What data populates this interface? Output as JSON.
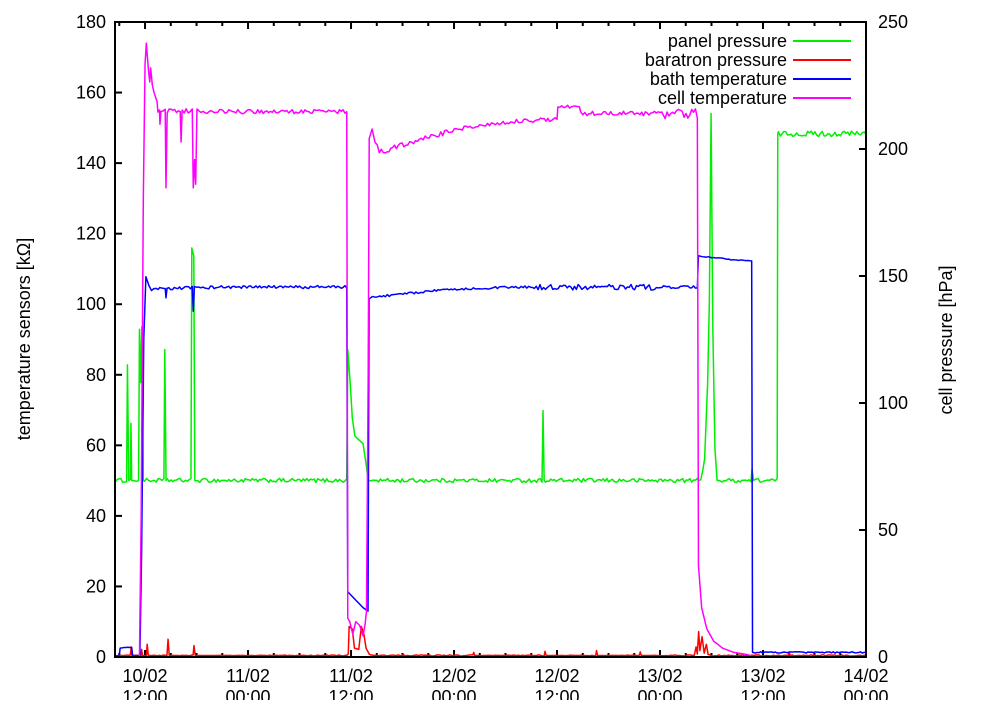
{
  "chart_data": {
    "type": "line",
    "title": "",
    "background": "#ffffff",
    "frame_color": "#000000",
    "grid": false,
    "legend": {
      "position": "top-right-inside"
    },
    "x_axis": {
      "unit": "hours since 10/02 00:00",
      "range": [
        8.5,
        96
      ],
      "minor_tick_step_hours": 3,
      "major_ticks": [
        {
          "t": 12,
          "date": "10/02",
          "time": "12:00"
        },
        {
          "t": 24,
          "date": "11/02",
          "time": "00:00"
        },
        {
          "t": 36,
          "date": "11/02",
          "time": "12:00"
        },
        {
          "t": 48,
          "date": "12/02",
          "time": "00:00"
        },
        {
          "t": 60,
          "date": "12/02",
          "time": "12:00"
        },
        {
          "t": 72,
          "date": "13/02",
          "time": "00:00"
        },
        {
          "t": 84,
          "date": "13/02",
          "time": "12:00"
        },
        {
          "t": 96,
          "date": "14/02",
          "time": "00:00"
        }
      ]
    },
    "y_left": {
      "label": "temperature sensors [kΩ]",
      "range": [
        0,
        180
      ],
      "ticks": [
        0,
        20,
        40,
        60,
        80,
        100,
        120,
        140,
        160,
        180
      ]
    },
    "y_right": {
      "label": "cell pressure [hPa]",
      "range": [
        0,
        250
      ],
      "ticks": [
        0,
        50,
        100,
        150,
        200,
        250
      ]
    },
    "series": [
      {
        "name": "panel pressure",
        "color": "#00ee00",
        "axis": "right",
        "unit": "hPa",
        "points": [
          [
            8.5,
            69.5,
            0.8
          ],
          [
            9.85,
            69.5,
            0.8
          ],
          [
            9.95,
            115,
            0
          ],
          [
            10.1,
            69.5,
            0
          ],
          [
            10.3,
            69.5,
            0.8
          ],
          [
            10.36,
            92,
            0
          ],
          [
            10.45,
            69.5,
            0
          ],
          [
            11.25,
            69.5,
            0.8
          ],
          [
            11.35,
            129,
            0
          ],
          [
            11.5,
            108,
            0
          ],
          [
            11.62,
            130,
            0
          ],
          [
            11.8,
            69.5,
            0
          ],
          [
            11.95,
            69.5,
            0.8
          ],
          [
            14.2,
            69.5,
            0.8
          ],
          [
            14.3,
            121,
            0
          ],
          [
            14.45,
            69.5,
            0
          ],
          [
            14.6,
            69.5,
            0.8
          ],
          [
            17.35,
            69.5,
            0.8
          ],
          [
            17.45,
            161,
            0
          ],
          [
            17.68,
            158,
            0
          ],
          [
            17.8,
            69.5,
            0
          ],
          [
            17.95,
            69.5,
            0.8
          ],
          [
            35.5,
            69.5,
            0.8
          ],
          [
            35.62,
            121,
            0
          ],
          [
            35.9,
            108,
            0
          ],
          [
            36.15,
            94,
            0
          ],
          [
            36.45,
            87,
            0
          ],
          [
            36.75,
            86,
            0
          ],
          [
            37.4,
            84,
            0
          ],
          [
            37.8,
            75,
            0
          ],
          [
            38.0,
            69.5,
            0
          ],
          [
            38.15,
            69.5,
            0.8
          ],
          [
            58.25,
            69.5,
            0.8
          ],
          [
            58.37,
            97,
            0
          ],
          [
            58.5,
            69.5,
            0
          ],
          [
            58.65,
            69.5,
            0.8
          ],
          [
            76.75,
            69.5,
            0.8
          ],
          [
            77.2,
            78,
            0
          ],
          [
            77.55,
            108,
            0
          ],
          [
            77.75,
            140,
            0
          ],
          [
            77.95,
            214,
            0
          ],
          [
            78.15,
            130,
            0
          ],
          [
            78.4,
            82,
            0
          ],
          [
            78.65,
            69.5,
            0
          ],
          [
            78.8,
            69.5,
            0.8
          ],
          [
            82.6,
            69.5,
            0.8
          ],
          [
            82.72,
            74,
            0
          ],
          [
            82.9,
            69.5,
            0
          ],
          [
            83.0,
            69.5,
            0.8
          ],
          [
            85.65,
            69.5,
            0.8
          ],
          [
            85.72,
            206,
            0
          ],
          [
            85.8,
            206,
            1.1
          ],
          [
            96,
            206,
            1.1
          ]
        ]
      },
      {
        "name": "baratron pressure",
        "color": "#ff0000",
        "axis": "right",
        "unit": "hPa",
        "points": [
          [
            8.5,
            0.6,
            0.25
          ],
          [
            10.3,
            0.6,
            0.25
          ],
          [
            10.38,
            4,
            0
          ],
          [
            10.48,
            0.6,
            0
          ],
          [
            11.5,
            0.6,
            0.25
          ],
          [
            11.6,
            3,
            0
          ],
          [
            11.7,
            0.6,
            0
          ],
          [
            12.15,
            0.6,
            0.25
          ],
          [
            12.25,
            5,
            0
          ],
          [
            12.38,
            0.6,
            0
          ],
          [
            14.55,
            0.6,
            0.25
          ],
          [
            14.68,
            7,
            0
          ],
          [
            14.82,
            0.6,
            0
          ],
          [
            17.6,
            0.6,
            0.25
          ],
          [
            17.7,
            4.5,
            0
          ],
          [
            17.85,
            0.6,
            0
          ],
          [
            35.55,
            0.6,
            0.25
          ],
          [
            35.68,
            1.2,
            0
          ],
          [
            35.78,
            12,
            0
          ],
          [
            36.15,
            11,
            0
          ],
          [
            36.4,
            3.5,
            0
          ],
          [
            36.9,
            3,
            0
          ],
          [
            37.2,
            12,
            0
          ],
          [
            37.5,
            9,
            0
          ],
          [
            37.75,
            3.5,
            0
          ],
          [
            38.15,
            1,
            0
          ],
          [
            38.35,
            0.6,
            0.25
          ],
          [
            50.2,
            0.6,
            0.25
          ],
          [
            50.3,
            1.8,
            0
          ],
          [
            50.4,
            0.6,
            0
          ],
          [
            58.5,
            0.6,
            0.25
          ],
          [
            58.6,
            2.2,
            0
          ],
          [
            58.72,
            0.6,
            0
          ],
          [
            64.5,
            0.6,
            0.25
          ],
          [
            64.6,
            2.5,
            0
          ],
          [
            64.72,
            0.6,
            0
          ],
          [
            69.6,
            0.6,
            0.25
          ],
          [
            69.7,
            2,
            0
          ],
          [
            69.82,
            0.6,
            0
          ],
          [
            76.0,
            0.6,
            0.25
          ],
          [
            76.2,
            4,
            0
          ],
          [
            76.35,
            1.2,
            0
          ],
          [
            76.5,
            10,
            0
          ],
          [
            76.65,
            2.5,
            0
          ],
          [
            76.9,
            8,
            0
          ],
          [
            77.15,
            1.5,
            0
          ],
          [
            77.4,
            5,
            0
          ],
          [
            77.6,
            1,
            0
          ],
          [
            77.8,
            0.6,
            0.25
          ],
          [
            86.95,
            0.6,
            0.25
          ],
          [
            87.05,
            1.8,
            0
          ],
          [
            87.2,
            0.6,
            0.25
          ],
          [
            96,
            0.6,
            0.25
          ]
        ]
      },
      {
        "name": "bath temperature",
        "color": "#0000ff",
        "axis": "left",
        "unit": "kΩ",
        "points": [
          [
            8.5,
            0.4,
            0.12
          ],
          [
            9.0,
            0.4,
            0.12
          ],
          [
            9.1,
            2.6,
            0.15
          ],
          [
            10.45,
            2.6,
            0.15
          ],
          [
            10.55,
            0.4,
            0.12
          ],
          [
            11.4,
            0.4,
            0
          ],
          [
            11.6,
            30,
            0
          ],
          [
            11.85,
            90,
            0
          ],
          [
            12.1,
            107.8,
            0
          ],
          [
            12.45,
            105.3,
            0
          ],
          [
            12.75,
            103.9,
            0.3
          ],
          [
            13.3,
            104.3,
            0.4
          ],
          [
            14.35,
            104.4,
            0.4
          ],
          [
            14.44,
            101.8,
            0
          ],
          [
            14.56,
            104.4,
            0.4
          ],
          [
            17.5,
            104.7,
            0.4
          ],
          [
            17.62,
            98,
            0
          ],
          [
            17.75,
            104.7,
            0.4
          ],
          [
            19,
            104.8,
            0.45
          ],
          [
            35.5,
            104.9,
            0.45
          ],
          [
            35.62,
            18.5,
            0
          ],
          [
            36.4,
            16.5,
            0
          ],
          [
            37.4,
            14,
            0
          ],
          [
            37.98,
            13,
            0
          ],
          [
            38.1,
            101.5,
            0
          ],
          [
            38.5,
            102,
            0.3
          ],
          [
            40,
            102.4,
            0.3
          ],
          [
            42.5,
            103,
            0.3
          ],
          [
            45.5,
            103.8,
            0.3
          ],
          [
            48.5,
            104.3,
            0.3
          ],
          [
            52,
            104.6,
            0.35
          ],
          [
            55.6,
            104.8,
            0.35
          ],
          [
            57.8,
            104.8,
            0.8
          ],
          [
            71.8,
            104.8,
            0.8
          ],
          [
            72.2,
            104.8,
            0.45
          ],
          [
            76.35,
            104.8,
            0.45
          ],
          [
            76.48,
            113.6,
            0.2
          ],
          [
            78.5,
            113.1,
            0.2
          ],
          [
            80.5,
            112.6,
            0.15
          ],
          [
            82.68,
            112.3,
            0
          ],
          [
            82.78,
            1.3,
            0
          ],
          [
            83.1,
            1.3,
            0.2
          ],
          [
            96,
            1.3,
            0.2
          ]
        ]
      },
      {
        "name": "cell temperature",
        "color": "#ff00ff",
        "axis": "left",
        "unit": "kΩ",
        "points": [
          [
            8.5,
            0.15,
            0
          ],
          [
            11.35,
            0.15,
            0
          ],
          [
            11.55,
            40,
            0
          ],
          [
            11.8,
            130,
            0
          ],
          [
            12.0,
            168,
            0
          ],
          [
            12.15,
            174,
            0
          ],
          [
            12.25,
            171,
            0.5
          ],
          [
            12.4,
            166,
            0.5
          ],
          [
            12.55,
            163,
            0
          ],
          [
            12.65,
            167,
            0
          ],
          [
            12.85,
            162,
            0.5
          ],
          [
            13.05,
            160,
            0
          ],
          [
            13.25,
            158.5,
            0
          ],
          [
            13.4,
            157.5,
            0
          ],
          [
            13.5,
            154.8,
            0.65
          ],
          [
            13.68,
            154.8,
            0.65
          ],
          [
            13.74,
            151,
            0
          ],
          [
            13.85,
            154.8,
            0.65
          ],
          [
            14.35,
            154.8,
            0.65
          ],
          [
            14.44,
            133,
            0
          ],
          [
            14.58,
            154.8,
            0.65
          ],
          [
            16.1,
            154.8,
            0.65
          ],
          [
            16.2,
            146,
            0
          ],
          [
            16.32,
            154.8,
            0.65
          ],
          [
            17.5,
            154.8,
            0.65
          ],
          [
            17.62,
            133,
            0
          ],
          [
            17.78,
            141,
            0
          ],
          [
            17.9,
            134,
            0
          ],
          [
            18.05,
            154.8,
            0.65
          ],
          [
            19,
            154.6,
            0.6
          ],
          [
            35.5,
            154.6,
            0.6
          ],
          [
            35.62,
            11,
            0
          ],
          [
            35.85,
            10,
            0
          ],
          [
            36.2,
            6.5,
            0
          ],
          [
            36.55,
            10,
            0
          ],
          [
            37.0,
            9,
            0
          ],
          [
            37.4,
            6,
            0
          ],
          [
            37.65,
            9.5,
            0
          ],
          [
            37.8,
            13,
            0
          ],
          [
            38.0,
            80,
            0
          ],
          [
            38.12,
            147,
            0
          ],
          [
            38.45,
            149.8,
            0.5
          ],
          [
            38.8,
            146,
            0.5
          ],
          [
            39.3,
            143.3,
            0.7
          ],
          [
            40.2,
            143.7,
            0.7
          ],
          [
            41.5,
            144.8,
            0.7
          ],
          [
            43.5,
            146.3,
            0.7
          ],
          [
            46,
            148,
            0.7
          ],
          [
            48.5,
            149.6,
            0.6
          ],
          [
            51,
            150.7,
            0.6
          ],
          [
            53.5,
            151.5,
            0.6
          ],
          [
            55.5,
            152,
            0.6
          ],
          [
            60.0,
            152.4,
            0.6
          ],
          [
            60.1,
            156,
            0.4
          ],
          [
            62.6,
            156,
            0.4
          ],
          [
            62.75,
            154,
            0.6
          ],
          [
            63.5,
            154,
            0.7
          ],
          [
            72.2,
            154,
            0.7
          ],
          [
            72.6,
            154,
            1.4
          ],
          [
            76.35,
            154,
            1.4
          ],
          [
            76.48,
            26,
            0
          ],
          [
            76.85,
            14,
            0
          ],
          [
            77.45,
            8,
            0
          ],
          [
            78.25,
            4.5,
            0
          ],
          [
            79.3,
            2.5,
            0
          ],
          [
            80.6,
            1.3,
            0
          ],
          [
            82.1,
            0.7,
            0
          ],
          [
            82.72,
            0.3,
            0
          ],
          [
            82.8,
            0.05,
            0
          ]
        ]
      }
    ]
  }
}
